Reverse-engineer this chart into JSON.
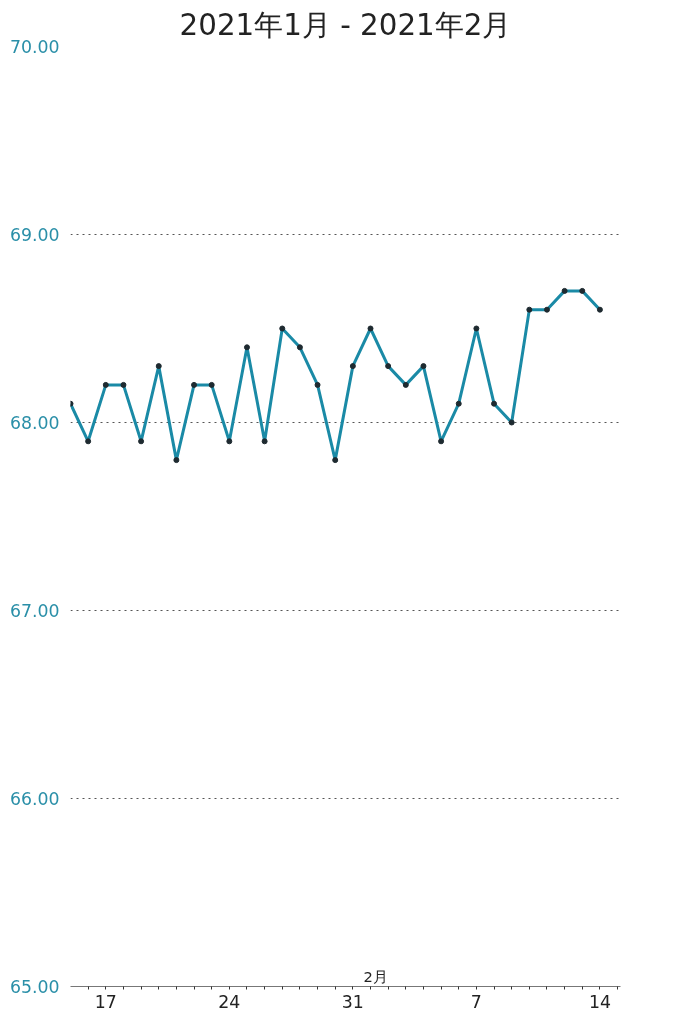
{
  "chart_data": {
    "type": "line",
    "title": "2021年1月 - 2021年2月",
    "x": [
      "2021-01-15",
      "2021-01-16",
      "2021-01-17",
      "2021-01-18",
      "2021-01-19",
      "2021-01-20",
      "2021-01-21",
      "2021-01-22",
      "2021-01-23",
      "2021-01-24",
      "2021-01-25",
      "2021-01-26",
      "2021-01-27",
      "2021-01-28",
      "2021-01-29",
      "2021-01-30",
      "2021-01-31",
      "2021-02-01",
      "2021-02-02",
      "2021-02-03",
      "2021-02-04",
      "2021-02-05",
      "2021-02-06",
      "2021-02-07",
      "2021-02-08",
      "2021-02-09",
      "2021-02-10",
      "2021-02-11",
      "2021-02-12",
      "2021-02-13",
      "2021-02-14"
    ],
    "series": [
      {
        "color": "#1a8aa6",
        "values": [
          68.1,
          67.9,
          68.2,
          68.2,
          67.9,
          68.3,
          67.8,
          68.2,
          68.2,
          67.9,
          68.4,
          67.9,
          68.5,
          68.4,
          68.2,
          67.8,
          68.3,
          68.5,
          68.3,
          68.2,
          68.3,
          67.9,
          68.1,
          68.5,
          68.1,
          68.0,
          68.6,
          68.6,
          68.7,
          68.7,
          68.6
        ]
      }
    ],
    "xlim": [
      "2021-01-15",
      "2021-02-15T04:00"
    ],
    "xticks": [
      {
        "value": "2021-01-16",
        "label": null
      },
      {
        "value": "2021-01-17",
        "label": "17"
      },
      {
        "value": "2021-01-18",
        "label": null
      },
      {
        "value": "2021-01-19",
        "label": null
      },
      {
        "value": "2021-01-20",
        "label": null
      },
      {
        "value": "2021-01-21",
        "label": null
      },
      {
        "value": "2021-01-22",
        "label": null
      },
      {
        "value": "2021-01-23",
        "label": null
      },
      {
        "value": "2021-01-24",
        "label": "24"
      },
      {
        "value": "2021-01-25",
        "label": null
      },
      {
        "value": "2021-01-26",
        "label": null
      },
      {
        "value": "2021-01-27",
        "label": null
      },
      {
        "value": "2021-01-28",
        "label": null
      },
      {
        "value": "2021-01-29",
        "label": null
      },
      {
        "value": "2021-01-30",
        "label": null
      },
      {
        "value": "2021-01-31",
        "label": "31"
      },
      {
        "value": "2021-02-01",
        "label": null
      },
      {
        "value": "2021-02-02",
        "label": null
      },
      {
        "value": "2021-02-03",
        "label": null
      },
      {
        "value": "2021-02-04",
        "label": null
      },
      {
        "value": "2021-02-05",
        "label": null
      },
      {
        "value": "2021-02-06",
        "label": null
      },
      {
        "value": "2021-02-07",
        "label": "7"
      },
      {
        "value": "2021-02-08",
        "label": null
      },
      {
        "value": "2021-02-09",
        "label": null
      },
      {
        "value": "2021-02-10",
        "label": null
      },
      {
        "value": "2021-02-11",
        "label": null
      },
      {
        "value": "2021-02-12",
        "label": null
      },
      {
        "value": "2021-02-13",
        "label": null
      },
      {
        "value": "2021-02-14",
        "label": "14"
      },
      {
        "value": "2021-02-15",
        "label": null
      }
    ],
    "ylim": [
      65,
      70
    ],
    "yticks": [
      {
        "value": 65,
        "label": "65.00"
      },
      {
        "value": 66,
        "label": "66.00"
      },
      {
        "value": 67,
        "label": "67.00"
      },
      {
        "value": 68,
        "label": "68.00"
      },
      {
        "value": 69,
        "label": "69.00"
      },
      {
        "value": 70,
        "label": "70.00"
      }
    ],
    "annotations": [
      "2月"
    ],
    "grid": "y",
    "marker": "circle",
    "line_style": "solid"
  }
}
